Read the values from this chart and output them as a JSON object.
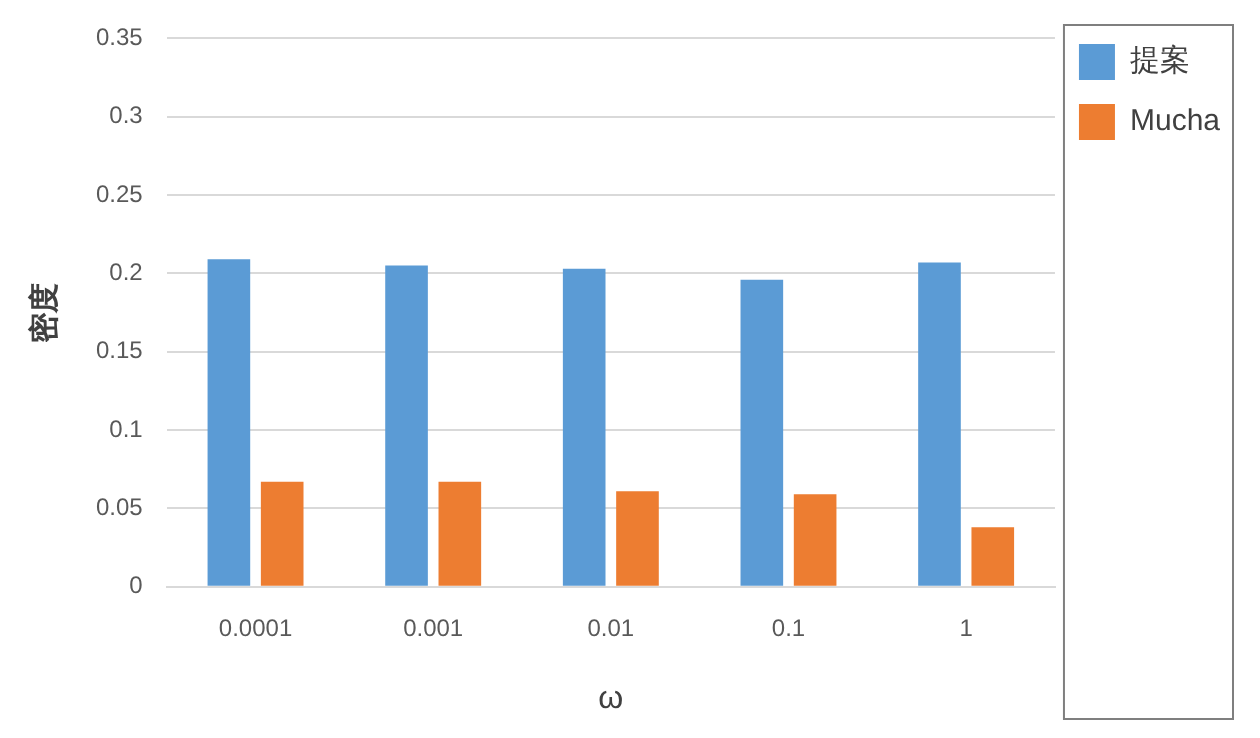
{
  "chart_data": {
    "type": "bar",
    "xlabel": "ω",
    "ylabel": "密度",
    "categories": [
      "0.0001",
      "0.001",
      "0.01",
      "0.1",
      "1"
    ],
    "series": [
      {
        "name": "提案",
        "color": "#5b9bd5",
        "values": [
          0.209,
          0.205,
          0.203,
          0.196,
          0.207
        ]
      },
      {
        "name": "Mucha",
        "color": "#ed7d31",
        "values": [
          0.067,
          0.067,
          0.061,
          0.059,
          0.038
        ]
      }
    ],
    "ylim": [
      0,
      0.35
    ],
    "yticks": [
      0,
      0.05,
      0.1,
      0.15,
      0.2,
      0.25,
      0.3,
      0.35
    ],
    "grid": "y",
    "legend": "top right"
  }
}
